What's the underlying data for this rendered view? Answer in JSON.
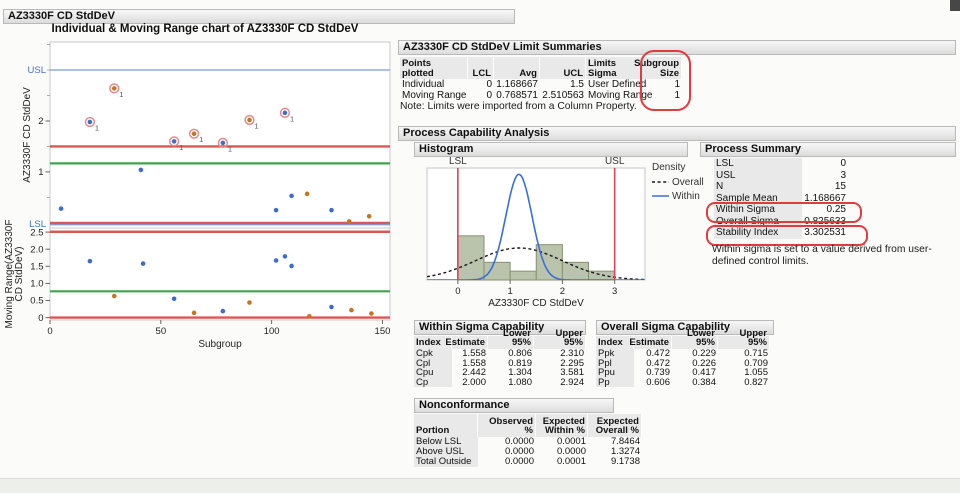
{
  "app": {
    "outline_title": "AZ3330F CD StdDeV"
  },
  "imr_chart": {
    "title": "Individual & Moving Range chart of AZ3330F CD StdDeV",
    "x_axis": {
      "label": "Subgroup",
      "ticks": [
        {
          "v": 0,
          "label": "0"
        },
        {
          "v": 50,
          "label": "50"
        },
        {
          "v": 100,
          "label": "100"
        },
        {
          "v": 150,
          "label": "150"
        }
      ]
    }
  },
  "chart_data": [
    {
      "id": "individual",
      "type": "scatter",
      "title": "Individual chart",
      "ylabel": "AZ3330F CD StdDeV",
      "xlabel": "Subgroup",
      "xlim": [
        0,
        153.4
      ],
      "ylim": [
        -0.1,
        3.55
      ],
      "yticks": [
        {
          "v": 1,
          "label": "1"
        },
        {
          "v": 2,
          "label": "2"
        }
      ],
      "yminor": [
        0.5,
        1.5,
        2.5,
        3,
        3.5
      ],
      "lines": {
        "usl": 3,
        "ucl": 1.5,
        "center": 1.168667,
        "lcl": 0,
        "lsl": 0
      },
      "usl_label": "USL",
      "lsl_label": "LSL",
      "ooc_flag_label": "1",
      "points": [
        {
          "x": 5,
          "y": 0.28,
          "series": "blue",
          "out_of_control": false
        },
        {
          "x": 18,
          "y": 1.98,
          "series": "blue",
          "out_of_control": true
        },
        {
          "x": 29,
          "y": 2.64,
          "series": "orange",
          "out_of_control": true
        },
        {
          "x": 41,
          "y": 1.04,
          "series": "blue",
          "out_of_control": false
        },
        {
          "x": 56,
          "y": 1.6,
          "series": "blue",
          "out_of_control": true
        },
        {
          "x": 65,
          "y": 1.75,
          "series": "orange",
          "out_of_control": true
        },
        {
          "x": 78,
          "y": 1.57,
          "series": "blue",
          "out_of_control": true
        },
        {
          "x": 90,
          "y": 2.02,
          "series": "orange",
          "out_of_control": true
        },
        {
          "x": 102,
          "y": 0.25,
          "series": "blue",
          "out_of_control": false
        },
        {
          "x": 106,
          "y": 2.16,
          "series": "blue",
          "out_of_control": true
        },
        {
          "x": 109,
          "y": 0.53,
          "series": "blue",
          "out_of_control": false
        },
        {
          "x": 116,
          "y": 0.57,
          "series": "orange",
          "out_of_control": false
        },
        {
          "x": 127,
          "y": 0.25,
          "series": "blue",
          "out_of_control": false
        },
        {
          "x": 135,
          "y": 0.03,
          "series": "orange",
          "out_of_control": false
        },
        {
          "x": 144,
          "y": 0.13,
          "series": "orange",
          "out_of_control": false
        }
      ]
    },
    {
      "id": "moving_range",
      "type": "scatter",
      "title": "Moving Range chart",
      "ylabel_lines": [
        "Moving Range(AZ3330F",
        "CD StdDeV)"
      ],
      "xlim": [
        0,
        153.4
      ],
      "ylim": [
        -0.07,
        2.62
      ],
      "yticks": [
        {
          "v": 0,
          "label": "0"
        },
        {
          "v": 0.5,
          "label": "0.5"
        },
        {
          "v": 1,
          "label": "1.0"
        },
        {
          "v": 1.5,
          "label": "1.5"
        },
        {
          "v": 2,
          "label": "2.0"
        },
        {
          "v": 2.5,
          "label": "2.5"
        }
      ],
      "lines": {
        "ucl": 2.510563,
        "center": 0.768571,
        "lcl": 0
      },
      "points": [
        {
          "x": 18,
          "y": 1.65,
          "series": "blue"
        },
        {
          "x": 29,
          "y": 0.63,
          "series": "orange"
        },
        {
          "x": 42,
          "y": 1.58,
          "series": "blue"
        },
        {
          "x": 56,
          "y": 0.55,
          "series": "blue"
        },
        {
          "x": 65,
          "y": 0.14,
          "series": "orange"
        },
        {
          "x": 78,
          "y": 0.19,
          "series": "blue"
        },
        {
          "x": 90,
          "y": 0.44,
          "series": "orange"
        },
        {
          "x": 102,
          "y": 1.67,
          "series": "blue"
        },
        {
          "x": 106,
          "y": 1.79,
          "series": "blue"
        },
        {
          "x": 109,
          "y": 1.51,
          "series": "blue"
        },
        {
          "x": 117,
          "y": 0.04,
          "series": "orange"
        },
        {
          "x": 127,
          "y": 0.31,
          "series": "blue"
        },
        {
          "x": 136,
          "y": 0.22,
          "series": "orange"
        },
        {
          "x": 145,
          "y": 0.12,
          "series": "orange"
        }
      ]
    },
    {
      "id": "histogram",
      "type": "histogram",
      "xlabel": "AZ3330F CD StdDeV",
      "xlim": [
        -0.59,
        3.58
      ],
      "xticks": [
        {
          "v": 0,
          "label": "0"
        },
        {
          "v": 1,
          "label": "1"
        },
        {
          "v": 2,
          "label": "2"
        },
        {
          "v": 3,
          "label": "3"
        }
      ],
      "bin_start": 0,
      "bin_width": 0.5,
      "counts": [
        5,
        2,
        1,
        4,
        2,
        1
      ],
      "n": 15,
      "density_max": 1.69,
      "spec_lines": {
        "lsl": {
          "label": "LSL",
          "value": 0
        },
        "usl": {
          "label": "USL",
          "value": 3
        }
      },
      "curves": [
        {
          "name": "Overall",
          "mean": 1.168667,
          "sigma": 0.825633,
          "style": "dashed-black"
        },
        {
          "name": "Within",
          "mean": 1.168667,
          "sigma": 0.25,
          "style": "solid-blue"
        }
      ],
      "legend": {
        "title": "Density",
        "entries": [
          "Overall",
          "Within"
        ]
      }
    }
  ],
  "limit_summaries": {
    "title": "AZ3330F CD StdDeV Limit Summaries",
    "columns": [
      "Points plotted",
      "LCL",
      "Avg",
      "UCL",
      "Limits Sigma",
      "Subgroup Size"
    ],
    "rows": [
      [
        "Individual",
        "0",
        "1.168667",
        "1.5",
        "User Defined",
        "1"
      ],
      [
        "Moving Range",
        "0",
        "0.768571",
        "2.510563",
        "Moving Range",
        "1"
      ]
    ],
    "note": "Note: Limits were imported from a Column Property."
  },
  "process_capability": {
    "title": "Process Capability Analysis",
    "histogram_title": "Histogram",
    "process_summary": {
      "title": "Process Summary",
      "rows": [
        [
          "LSL",
          "0"
        ],
        [
          "USL",
          "3"
        ],
        [
          "N",
          "15"
        ],
        [
          "Sample Mean",
          "1.168667"
        ],
        [
          "Within Sigma",
          "0.25"
        ],
        [
          "Overall Sigma",
          "0.825633"
        ],
        [
          "Stability Index",
          "3.302531"
        ]
      ],
      "note": "Within sigma is set to a value derived from user-defined control limits."
    },
    "within_capability": {
      "title": "Within Sigma Capability",
      "columns": [
        "Index",
        "Estimate",
        "Lower 95%",
        "Upper 95%"
      ],
      "rows": [
        [
          "Cpk",
          "1.558",
          "0.806",
          "2.310"
        ],
        [
          "Cpl",
          "1.558",
          "0.819",
          "2.295"
        ],
        [
          "Cpu",
          "2.442",
          "1.304",
          "3.581"
        ],
        [
          "Cp",
          "2.000",
          "1.080",
          "2.924"
        ]
      ]
    },
    "overall_capability": {
      "title": "Overall Sigma Capability",
      "columns": [
        "Index",
        "Estimate",
        "Lower 95%",
        "Upper 95%"
      ],
      "rows": [
        [
          "Ppk",
          "0.472",
          "0.229",
          "0.715"
        ],
        [
          "Ppl",
          "0.472",
          "0.226",
          "0.709"
        ],
        [
          "Ppu",
          "0.739",
          "0.417",
          "1.055"
        ],
        [
          "Pp",
          "0.606",
          "0.384",
          "0.827"
        ]
      ]
    },
    "nonconformance": {
      "title": "Nonconformance",
      "columns": [
        "Portion",
        "Observed %",
        "Expected Within %",
        "Expected Overall %"
      ],
      "rows": [
        [
          "Below LSL",
          "0.0000",
          "0.0001",
          "7.8464"
        ],
        [
          "Above USL",
          "0.0000",
          "0.0000",
          "1.3274"
        ],
        [
          "Total Outside",
          "0.0000",
          "0.0001",
          "9.1738"
        ]
      ]
    }
  },
  "colors": {
    "point_blue": "#3E6CC8",
    "point_orange": "#C4761F",
    "ooc_ring": "#E48A8A",
    "limit_red": "#D95853",
    "center_green": "#3DA648",
    "spec_blue_line": "#7B9CD9",
    "spec_blue_label": "#4472C8",
    "hist_fill": "#BAC3AC",
    "hist_stroke": "#87916F",
    "within_curve": "#3A6FD8",
    "overall_curve": "#1A1A1A",
    "annotation_red": "#E23B3B"
  }
}
